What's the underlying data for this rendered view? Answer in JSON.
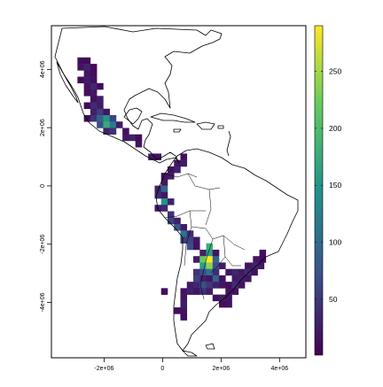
{
  "map": {
    "x_ticks": [
      "-2e+06",
      "0",
      "2e+06",
      "4e+06"
    ],
    "x_tick_values": [
      -2000000,
      0,
      2000000,
      4000000
    ],
    "y_ticks": [
      "4e+06",
      "2e+06",
      "0",
      "-2e+06",
      "-4e+06"
    ],
    "y_tick_values": [
      4000000,
      2000000,
      0,
      -2000000,
      -4000000
    ],
    "xlim": [
      -3800000,
      4900000
    ],
    "ylim": [
      -5900000,
      5500000
    ],
    "cell_size": 220000,
    "colorscale": [
      "#440154",
      "#3b528b",
      "#21918c",
      "#5ec962",
      "#fde725"
    ]
  },
  "legend": {
    "ticks": [
      "50",
      "100",
      "150",
      "200",
      "250"
    ],
    "tick_values": [
      50,
      100,
      150,
      200,
      250
    ],
    "range": [
      1,
      290
    ]
  },
  "chart_data": {
    "type": "heatmap",
    "title": "",
    "xlabel": "",
    "ylabel": "",
    "value_range": [
      1,
      290
    ],
    "cells": [
      {
        "x": -2800000,
        "y": 4300000,
        "v": 12
      },
      {
        "x": -2580000,
        "y": 4300000,
        "v": 8
      },
      {
        "x": -2800000,
        "y": 4080000,
        "v": 15
      },
      {
        "x": -2580000,
        "y": 4080000,
        "v": 30
      },
      {
        "x": -2360000,
        "y": 4080000,
        "v": 10
      },
      {
        "x": -2580000,
        "y": 3860000,
        "v": 20
      },
      {
        "x": -2360000,
        "y": 3860000,
        "v": 12
      },
      {
        "x": -2800000,
        "y": 3640000,
        "v": 9
      },
      {
        "x": -2580000,
        "y": 3640000,
        "v": 25
      },
      {
        "x": -2360000,
        "y": 3640000,
        "v": 14
      },
      {
        "x": -2580000,
        "y": 3420000,
        "v": 18
      },
      {
        "x": -2360000,
        "y": 3420000,
        "v": 35
      },
      {
        "x": -2140000,
        "y": 3420000,
        "v": 10
      },
      {
        "x": -2580000,
        "y": 3200000,
        "v": 11
      },
      {
        "x": -2360000,
        "y": 3200000,
        "v": 22
      },
      {
        "x": -2360000,
        "y": 2980000,
        "v": 16
      },
      {
        "x": -2140000,
        "y": 2980000,
        "v": 28
      },
      {
        "x": -2580000,
        "y": 2760000,
        "v": 9
      },
      {
        "x": -2360000,
        "y": 2760000,
        "v": 40
      },
      {
        "x": -2140000,
        "y": 2760000,
        "v": 24
      },
      {
        "x": -2360000,
        "y": 2540000,
        "v": 30
      },
      {
        "x": -2140000,
        "y": 2540000,
        "v": 55
      },
      {
        "x": -1920000,
        "y": 2540000,
        "v": 20
      },
      {
        "x": -2580000,
        "y": 2320000,
        "v": 12
      },
      {
        "x": -2360000,
        "y": 2320000,
        "v": 45
      },
      {
        "x": -2140000,
        "y": 2320000,
        "v": 90
      },
      {
        "x": -1920000,
        "y": 2320000,
        "v": 150
      },
      {
        "x": -1700000,
        "y": 2320000,
        "v": 60
      },
      {
        "x": -2140000,
        "y": 2100000,
        "v": 70
      },
      {
        "x": -1920000,
        "y": 2100000,
        "v": 175
      },
      {
        "x": -1700000,
        "y": 2100000,
        "v": 120
      },
      {
        "x": -1480000,
        "y": 2100000,
        "v": 25
      },
      {
        "x": -1920000,
        "y": 1880000,
        "v": 30
      },
      {
        "x": -1700000,
        "y": 1880000,
        "v": 45
      },
      {
        "x": -1260000,
        "y": 1880000,
        "v": 15
      },
      {
        "x": -1260000,
        "y": 1660000,
        "v": 20
      },
      {
        "x": -1040000,
        "y": 1660000,
        "v": 30
      },
      {
        "x": -820000,
        "y": 1660000,
        "v": 12
      },
      {
        "x": -820000,
        "y": 1440000,
        "v": 18
      },
      {
        "x": -380000,
        "y": 1000000,
        "v": 22
      },
      {
        "x": -160000,
        "y": 1000000,
        "v": 15
      },
      {
        "x": 720000,
        "y": 1000000,
        "v": 14
      },
      {
        "x": 500000,
        "y": 780000,
        "v": 20
      },
      {
        "x": 720000,
        "y": 780000,
        "v": 25
      },
      {
        "x": 280000,
        "y": 560000,
        "v": 12
      },
      {
        "x": 500000,
        "y": 560000,
        "v": 30
      },
      {
        "x": 60000,
        "y": 340000,
        "v": 18
      },
      {
        "x": 280000,
        "y": 340000,
        "v": 25
      },
      {
        "x": 60000,
        "y": 120000,
        "v": 20
      },
      {
        "x": -160000,
        "y": -100000,
        "v": 30
      },
      {
        "x": 60000,
        "y": -100000,
        "v": 95
      },
      {
        "x": -160000,
        "y": -320000,
        "v": 40
      },
      {
        "x": 60000,
        "y": -320000,
        "v": 22
      },
      {
        "x": 60000,
        "y": -540000,
        "v": 150
      },
      {
        "x": 280000,
        "y": -540000,
        "v": 30
      },
      {
        "x": -160000,
        "y": -760000,
        "v": 25
      },
      {
        "x": 60000,
        "y": -760000,
        "v": 35
      },
      {
        "x": 280000,
        "y": -980000,
        "v": 45
      },
      {
        "x": 280000,
        "y": -1200000,
        "v": 60
      },
      {
        "x": 500000,
        "y": -1200000,
        "v": 30
      },
      {
        "x": 500000,
        "y": -1420000,
        "v": 80
      },
      {
        "x": 720000,
        "y": -1420000,
        "v": 25
      },
      {
        "x": 720000,
        "y": -1640000,
        "v": 110
      },
      {
        "x": 940000,
        "y": -1640000,
        "v": 40
      },
      {
        "x": 720000,
        "y": -1860000,
        "v": 55
      },
      {
        "x": 940000,
        "y": -1860000,
        "v": 60
      },
      {
        "x": 1160000,
        "y": -1860000,
        "v": 20
      },
      {
        "x": 940000,
        "y": -2080000,
        "v": 70
      },
      {
        "x": 1160000,
        "y": -2080000,
        "v": 15
      },
      {
        "x": 1600000,
        "y": -2080000,
        "v": 180
      },
      {
        "x": 1380000,
        "y": -2300000,
        "v": 30
      },
      {
        "x": 1600000,
        "y": -2300000,
        "v": 160
      },
      {
        "x": 1820000,
        "y": -2300000,
        "v": 20
      },
      {
        "x": 3420000,
        "y": -2300000,
        "v": 15
      },
      {
        "x": 1160000,
        "y": -2520000,
        "v": 25
      },
      {
        "x": 1380000,
        "y": -2520000,
        "v": 220
      },
      {
        "x": 1600000,
        "y": -2520000,
        "v": 290
      },
      {
        "x": 1820000,
        "y": -2520000,
        "v": 90
      },
      {
        "x": 3200000,
        "y": -2520000,
        "v": 20
      },
      {
        "x": 3420000,
        "y": -2520000,
        "v": 12
      },
      {
        "x": 1380000,
        "y": -2740000,
        "v": 160
      },
      {
        "x": 1600000,
        "y": -2740000,
        "v": 240
      },
      {
        "x": 1820000,
        "y": -2740000,
        "v": 70
      },
      {
        "x": 2040000,
        "y": -2740000,
        "v": 25
      },
      {
        "x": 2920000,
        "y": -2740000,
        "v": 18
      },
      {
        "x": 3140000,
        "y": -2740000,
        "v": 30
      },
      {
        "x": 3360000,
        "y": -2740000,
        "v": 22
      },
      {
        "x": 1160000,
        "y": -2960000,
        "v": 45
      },
      {
        "x": 1380000,
        "y": -2960000,
        "v": 70
      },
      {
        "x": 1600000,
        "y": -2960000,
        "v": 110
      },
      {
        "x": 1820000,
        "y": -2960000,
        "v": 40
      },
      {
        "x": 2260000,
        "y": -2960000,
        "v": 20
      },
      {
        "x": 2480000,
        "y": -2960000,
        "v": 35
      },
      {
        "x": 2700000,
        "y": -2960000,
        "v": 25
      },
      {
        "x": 2920000,
        "y": -2960000,
        "v": 40
      },
      {
        "x": 3140000,
        "y": -2960000,
        "v": 15
      },
      {
        "x": 1160000,
        "y": -3180000,
        "v": 60
      },
      {
        "x": 1380000,
        "y": -3180000,
        "v": 30
      },
      {
        "x": 1600000,
        "y": -3180000,
        "v": 20
      },
      {
        "x": 1820000,
        "y": -3180000,
        "v": 90
      },
      {
        "x": 2040000,
        "y": -3180000,
        "v": 15
      },
      {
        "x": 2480000,
        "y": -3180000,
        "v": 25
      },
      {
        "x": 2700000,
        "y": -3180000,
        "v": 30
      },
      {
        "x": 2920000,
        "y": -3180000,
        "v": 20
      },
      {
        "x": 940000,
        "y": -3400000,
        "v": 25
      },
      {
        "x": 1160000,
        "y": -3400000,
        "v": 35
      },
      {
        "x": 1380000,
        "y": -3400000,
        "v": 70
      },
      {
        "x": 1600000,
        "y": -3400000,
        "v": 50
      },
      {
        "x": 1820000,
        "y": -3400000,
        "v": 30
      },
      {
        "x": 2040000,
        "y": -3400000,
        "v": 20
      },
      {
        "x": 2260000,
        "y": -3400000,
        "v": 12
      },
      {
        "x": 2480000,
        "y": -3400000,
        "v": 40
      },
      {
        "x": 2700000,
        "y": -3400000,
        "v": 18
      },
      {
        "x": 720000,
        "y": -3620000,
        "v": 15
      },
      {
        "x": 940000,
        "y": -3620000,
        "v": 30
      },
      {
        "x": 1160000,
        "y": -3620000,
        "v": 20
      },
      {
        "x": 1380000,
        "y": -3620000,
        "v": 45
      },
      {
        "x": 1600000,
        "y": -3620000,
        "v": 25
      },
      {
        "x": 2260000,
        "y": -3620000,
        "v": 20
      },
      {
        "x": 2480000,
        "y": -3620000,
        "v": 15
      },
      {
        "x": 60000,
        "y": -3620000,
        "v": 12
      },
      {
        "x": 720000,
        "y": -3840000,
        "v": 20
      },
      {
        "x": 1820000,
        "y": -3840000,
        "v": 15
      },
      {
        "x": 2040000,
        "y": -3840000,
        "v": 25
      },
      {
        "x": 2260000,
        "y": -3840000,
        "v": 18
      },
      {
        "x": 2040000,
        "y": -4060000,
        "v": 12
      },
      {
        "x": 2260000,
        "y": -4060000,
        "v": 16
      },
      {
        "x": 720000,
        "y": -4060000,
        "v": 25
      },
      {
        "x": 720000,
        "y": -4280000,
        "v": 18
      },
      {
        "x": 500000,
        "y": -4280000,
        "v": 12
      },
      {
        "x": 720000,
        "y": -4500000,
        "v": 14
      }
    ]
  }
}
